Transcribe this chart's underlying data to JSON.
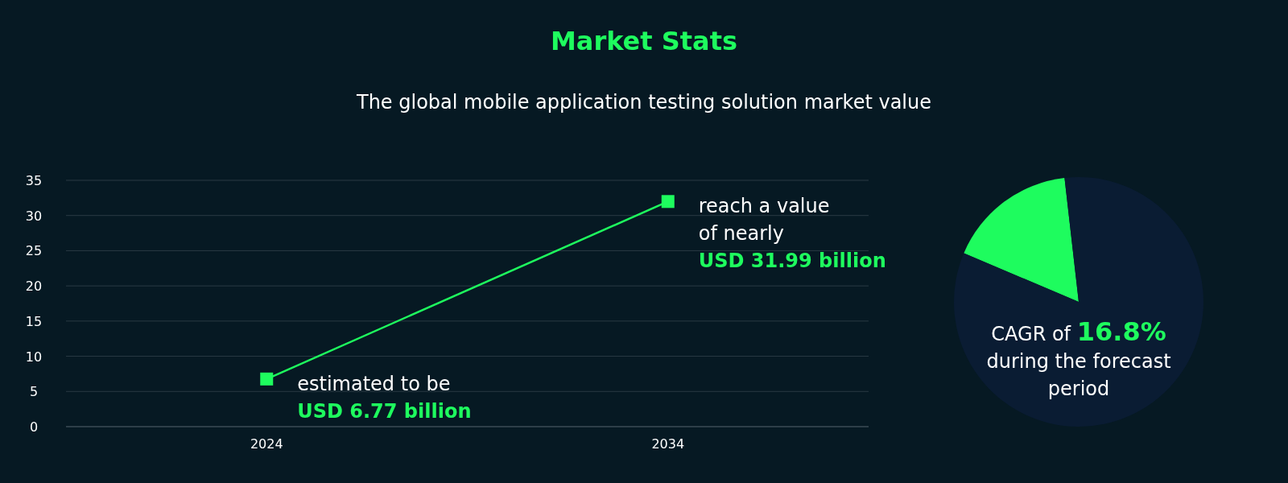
{
  "chart_data": [
    {
      "type": "line",
      "title": "Market Stats",
      "subtitle": "The global mobile application testing solution market value",
      "categories": [
        "2024",
        "2034"
      ],
      "values": [
        6.77,
        31.99
      ],
      "color": "#1efc5e",
      "ylim": [
        0,
        35
      ],
      "yticks": [
        0,
        5,
        10,
        15,
        20,
        25,
        30,
        35
      ],
      "grid": "y",
      "marker": "square",
      "annotations": [
        {
          "text": "estimated to be\nUSD 6.77 billion",
          "x": "2024",
          "y": 6.77
        },
        {
          "text": "reach a value\nof nearly\nUSD 31.99 billion",
          "x": "2034",
          "y": 31.99
        }
      ]
    },
    {
      "type": "pie",
      "categories": [
        null,
        null
      ],
      "values": [
        16.8,
        83.2
      ],
      "colors": [
        "#1efc5e",
        "#0a1c33"
      ],
      "annotations": [
        "CAGR of 16.8%\nduring the forecast\nperiod"
      ]
    }
  ]
}
